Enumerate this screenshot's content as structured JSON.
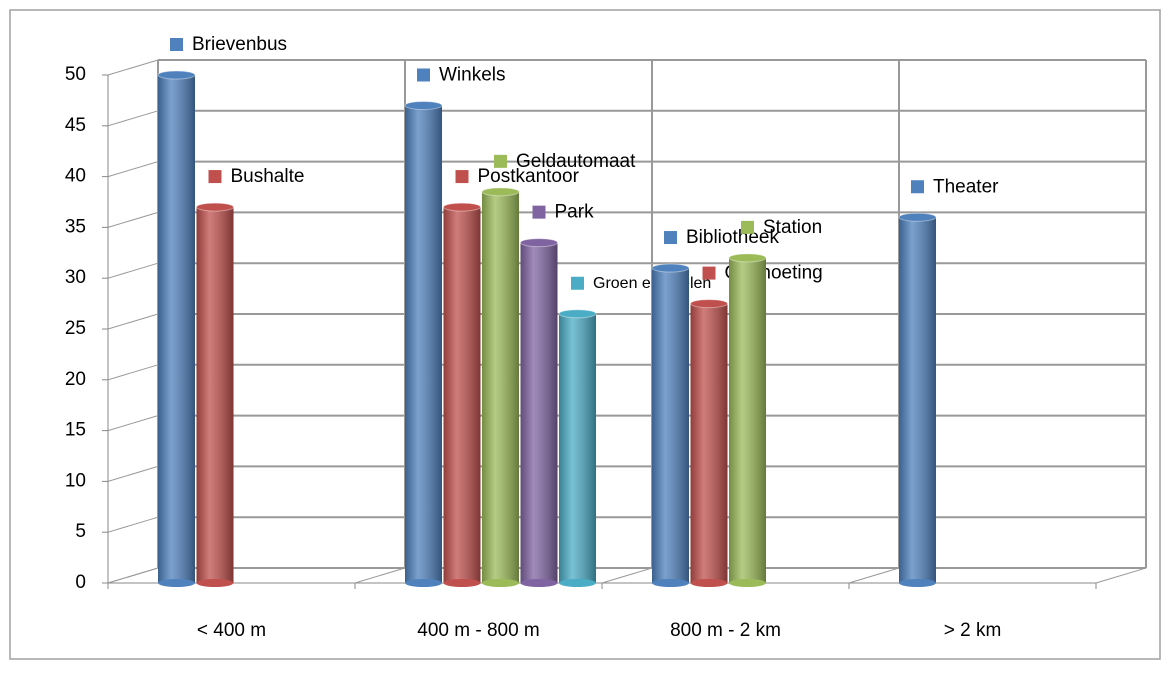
{
  "chart_data": {
    "type": "bar",
    "categories": [
      "< 400 m",
      "400 m - 800 m",
      "800 m - 2 km",
      "> 2 km"
    ],
    "series": [
      {
        "name": "Brievenbus",
        "color": "#4f81bd",
        "values": [
          50,
          null,
          null,
          null
        ]
      },
      {
        "name": "Bushalte",
        "color": "#c0504d",
        "values": [
          37,
          null,
          null,
          null
        ]
      },
      {
        "name": "Winkels",
        "color": "#4f81bd",
        "values": [
          null,
          47,
          null,
          null
        ]
      },
      {
        "name": "Postkantoor",
        "color": "#c0504d",
        "values": [
          null,
          37,
          null,
          null
        ]
      },
      {
        "name": "Geldautomaat",
        "color": "#9bbb59",
        "values": [
          null,
          38.5,
          null,
          null
        ]
      },
      {
        "name": "Park",
        "color": "#8064a2",
        "values": [
          null,
          33.5,
          null,
          null
        ]
      },
      {
        "name": "Groen en spelen",
        "color": "#4bacc6",
        "values": [
          null,
          26.5,
          null,
          null
        ]
      },
      {
        "name": "Bibliotheek",
        "color": "#4f81bd",
        "values": [
          null,
          null,
          31,
          null
        ]
      },
      {
        "name": "Ontmoeting",
        "color": "#c0504d",
        "values": [
          null,
          null,
          27.5,
          null
        ]
      },
      {
        "name": "Station",
        "color": "#9bbb59",
        "values": [
          null,
          null,
          32,
          null
        ]
      },
      {
        "name": "Theater",
        "color": "#4f81bd",
        "values": [
          null,
          null,
          null,
          36
        ]
      }
    ],
    "ylim": [
      0,
      50
    ],
    "yticks": [
      0,
      5,
      10,
      15,
      20,
      25,
      30,
      35,
      40,
      45,
      50
    ],
    "grid": true
  }
}
